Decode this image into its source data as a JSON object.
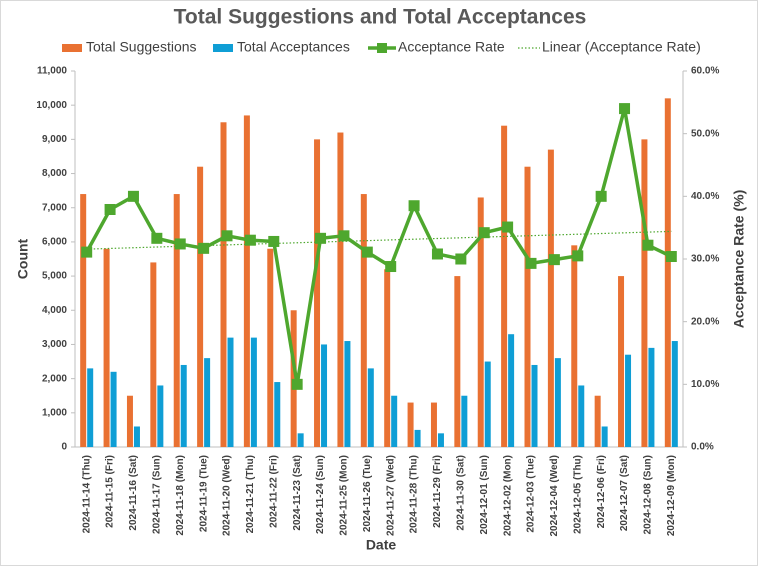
{
  "chart_data": {
    "type": "bar",
    "title": "Total Suggestions and Total Acceptances",
    "x_label": "Date",
    "y_label": "Count",
    "y2_label": "Acceptance Rate (%)",
    "categories": [
      "2024-11-14 (Thu)",
      "2024-11-15 (Fri)",
      "2024-11-16 (Sat)",
      "2024-11-17 (Sun)",
      "2024-11-18 (Mon)",
      "2024-11-19 (Tue)",
      "2024-11-20 (Wed)",
      "2024-11-21 (Thu)",
      "2024-11-22 (Fri)",
      "2024-11-23 (Sat)",
      "2024-11-24 (Sun)",
      "2024-11-25 (Mon)",
      "2024-11-26 (Tue)",
      "2024-11-27 (Wed)",
      "2024-11-28 (Thu)",
      "2024-11-29 (Fri)",
      "2024-11-30 (Sat)",
      "2024-12-01 (Sun)",
      "2024-12-02 (Mon)",
      "2024-12-03 (Tue)",
      "2024-12-04 (Wed)",
      "2024-12-05 (Thu)",
      "2024-12-06 (Fri)",
      "2024-12-07 (Sat)",
      "2024-12-08 (Sun)",
      "2024-12-09 (Mon)"
    ],
    "series": [
      {
        "name": "Total Suggestions",
        "type": "bar",
        "color": "#e97132",
        "values": [
          7400,
          5800,
          1500,
          5400,
          7400,
          8200,
          9500,
          9700,
          5800,
          4000,
          9000,
          9200,
          7400,
          5200,
          1300,
          1300,
          5000,
          7300,
          9400,
          8200,
          8700,
          5900,
          1500,
          5000,
          9000,
          10200
        ]
      },
      {
        "name": "Total Acceptances",
        "type": "bar",
        "color": "#0f9ed5",
        "values": [
          2300,
          2200,
          600,
          1800,
          2400,
          2600,
          3200,
          3200,
          1900,
          400,
          3000,
          3100,
          2300,
          1500,
          500,
          400,
          1500,
          2500,
          3300,
          2400,
          2600,
          1800,
          600,
          2700,
          2900,
          3100
        ]
      },
      {
        "name": "Acceptance Rate",
        "type": "line",
        "axis": "y2",
        "color": "#4ea72e",
        "marker": "square",
        "values": [
          31.1,
          37.9,
          40,
          33.3,
          32.4,
          31.7,
          33.7,
          33.0,
          32.8,
          10,
          33.3,
          33.7,
          31.1,
          28.8,
          38.5,
          30.8,
          30,
          34.2,
          35.1,
          29.3,
          29.9,
          30.5,
          40,
          54,
          32.2,
          30.4
        ]
      },
      {
        "name": "Linear (Acceptance Rate)",
        "type": "trendline",
        "fit": "linear",
        "source": "Acceptance Rate",
        "axis": "y2",
        "color": "#4ea72e",
        "style": "dotted"
      }
    ],
    "ylim": [
      0,
      11000
    ],
    "yticks": [
      0,
      {
        "value": 1000,
        "label": "1,000"
      },
      {
        "value": 2000,
        "label": "2,000"
      },
      {
        "value": 3000,
        "label": "3,000"
      },
      {
        "value": 4000,
        "label": "4,000"
      },
      {
        "value": 5000,
        "label": "5,000"
      },
      {
        "value": 6000,
        "label": "6,000"
      },
      {
        "value": 7000,
        "label": "7,000"
      },
      {
        "value": 8000,
        "label": "8,000"
      },
      {
        "value": 9000,
        "label": "9,000"
      },
      {
        "value": 10000,
        "label": "10,000"
      },
      {
        "value": 11000,
        "label": "11,000"
      }
    ],
    "y2lim": [
      0,
      60
    ],
    "y2ticks": [
      {
        "value": 0,
        "label": "0.0%"
      },
      {
        "value": 10,
        "label": "10.0%"
      },
      {
        "value": 20,
        "label": "20.0%"
      },
      {
        "value": 30,
        "label": "30.0%"
      },
      {
        "value": 40,
        "label": "40.0%"
      },
      {
        "value": 50,
        "label": "50.0%"
      },
      {
        "value": 60,
        "label": "60.0%"
      }
    ],
    "grid": false,
    "legend": "top"
  }
}
